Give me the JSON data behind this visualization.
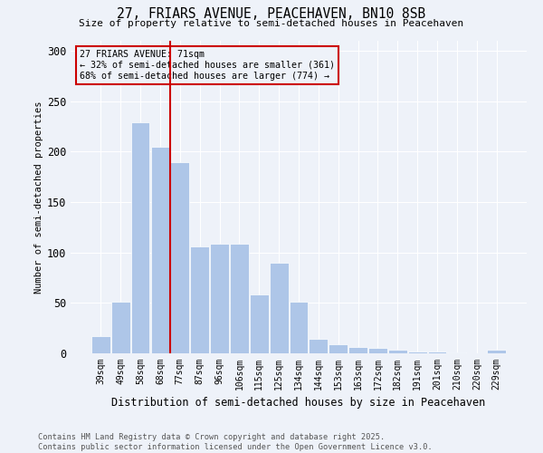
{
  "title": "27, FRIARS AVENUE, PEACEHAVEN, BN10 8SB",
  "subtitle": "Size of property relative to semi-detached houses in Peacehaven",
  "xlabel": "Distribution of semi-detached houses by size in Peacehaven",
  "ylabel": "Number of semi-detached properties",
  "categories": [
    "39sqm",
    "49sqm",
    "58sqm",
    "68sqm",
    "77sqm",
    "87sqm",
    "96sqm",
    "106sqm",
    "115sqm",
    "125sqm",
    "134sqm",
    "144sqm",
    "153sqm",
    "163sqm",
    "172sqm",
    "182sqm",
    "191sqm",
    "201sqm",
    "210sqm",
    "220sqm",
    "229sqm"
  ],
  "values": [
    17,
    51,
    229,
    205,
    190,
    106,
    109,
    109,
    58,
    90,
    51,
    14,
    9,
    6,
    5,
    4,
    2,
    2,
    1,
    0,
    4
  ],
  "bar_color": "#aec6e8",
  "property_line_x": 3.5,
  "property_size": "71sqm",
  "pct_smaller": 32,
  "n_smaller": 361,
  "pct_larger": 68,
  "n_larger": 774,
  "annotation_box_color": "#cc0000",
  "ylim": [
    0,
    310
  ],
  "yticks": [
    0,
    50,
    100,
    150,
    200,
    250,
    300
  ],
  "background_color": "#eef2f9",
  "footer": "Contains HM Land Registry data © Crown copyright and database right 2025.\nContains public sector information licensed under the Open Government Licence v3.0."
}
